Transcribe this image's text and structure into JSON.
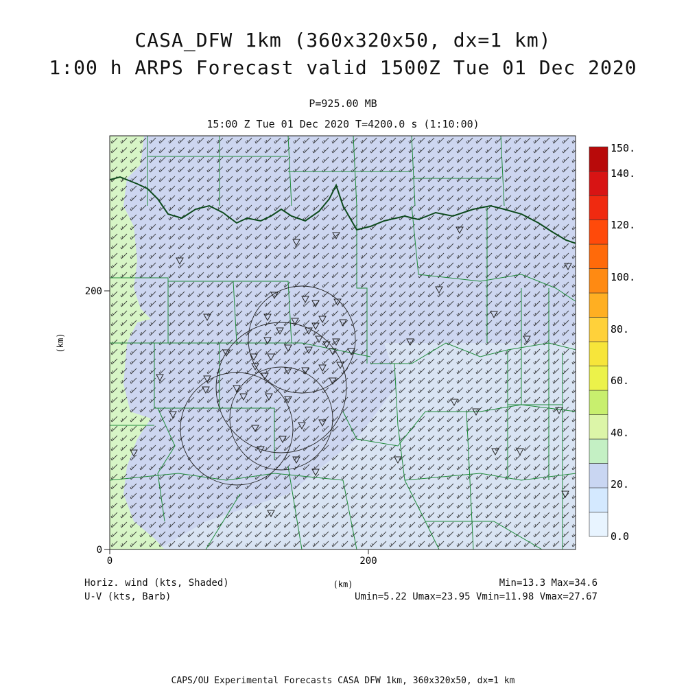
{
  "title": {
    "line1": "CASA_DFW 1km (360x320x50, dx=1 km)",
    "line2": "1:00 h ARPS Forecast valid 1500Z Tue 01 Dec 2020"
  },
  "level": "P=925.00 MB",
  "time_info": "15:00 Z Tue 01 Dec 2020   T=4200.0 s (1:10:00)",
  "axes": {
    "y_unit": "(km)",
    "x_unit": "(km)",
    "x_ticks": [
      "0",
      "200"
    ],
    "y_ticks": [
      "0",
      "200"
    ]
  },
  "colorbar": {
    "labels": [
      "0.0",
      "20.",
      "40.",
      "60.",
      "80.",
      "100.",
      "120.",
      "140.",
      "150."
    ],
    "colors": [
      "#e8f4ff",
      "#d4e9ff",
      "#c9d6f2",
      "#c4f0c4",
      "#dcf5a8",
      "#c8ef6e",
      "#ecf24a",
      "#f7e53a",
      "#ffd13a",
      "#ffaf22",
      "#ff8a12",
      "#ff6a0a",
      "#ff4a0a",
      "#f02a10",
      "#d81414",
      "#b80a0a"
    ]
  },
  "legend": {
    "shaded": "Horiz. wind (kts, Shaded)",
    "barb": "U-V (kts, Barb)",
    "minmax": "Min=13.3 Max=34.6",
    "uvminmax": "Umin=5.22 Umax=23.95 Vmin=11.98 Vmax=27.67"
  },
  "footer": "CAPS/OU Experimental Forecasts  CASA DFW 1km, 360x320x50, dx=1 km",
  "map_colors": {
    "main_field": "#cdd6f0",
    "low_field": "#dde8f5",
    "green_band": "#d7f5c6",
    "county_line": "#1f8a3a",
    "river": "#0d4a1c"
  }
}
